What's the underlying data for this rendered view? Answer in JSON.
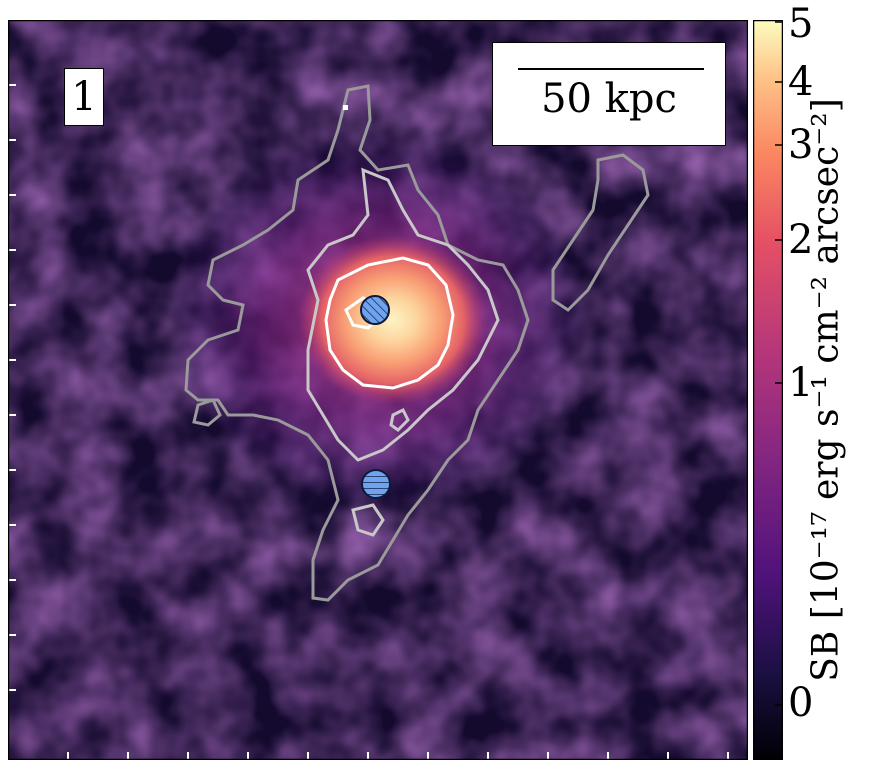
{
  "panel": {
    "id": "1"
  },
  "scale_bar": {
    "label": "50 kpc"
  },
  "colorbar": {
    "label": "SB [10⁻¹⁷ erg s⁻¹ cm⁻² arcsec⁻²]",
    "ticks": [
      "5",
      "4",
      "3",
      "2",
      "1",
      "0"
    ],
    "colormap": "magma"
  },
  "markers": [
    {
      "name": "source-hatched-diagonal",
      "color": "#6fa3ef",
      "hatch": "diagonal"
    },
    {
      "name": "source-hatched-horizontal",
      "color": "#6fa3ef",
      "hatch": "horizontal"
    }
  ],
  "contours": {
    "colors": [
      "#ffffff",
      "#c8c8c8",
      "#9a9a9a"
    ]
  }
}
